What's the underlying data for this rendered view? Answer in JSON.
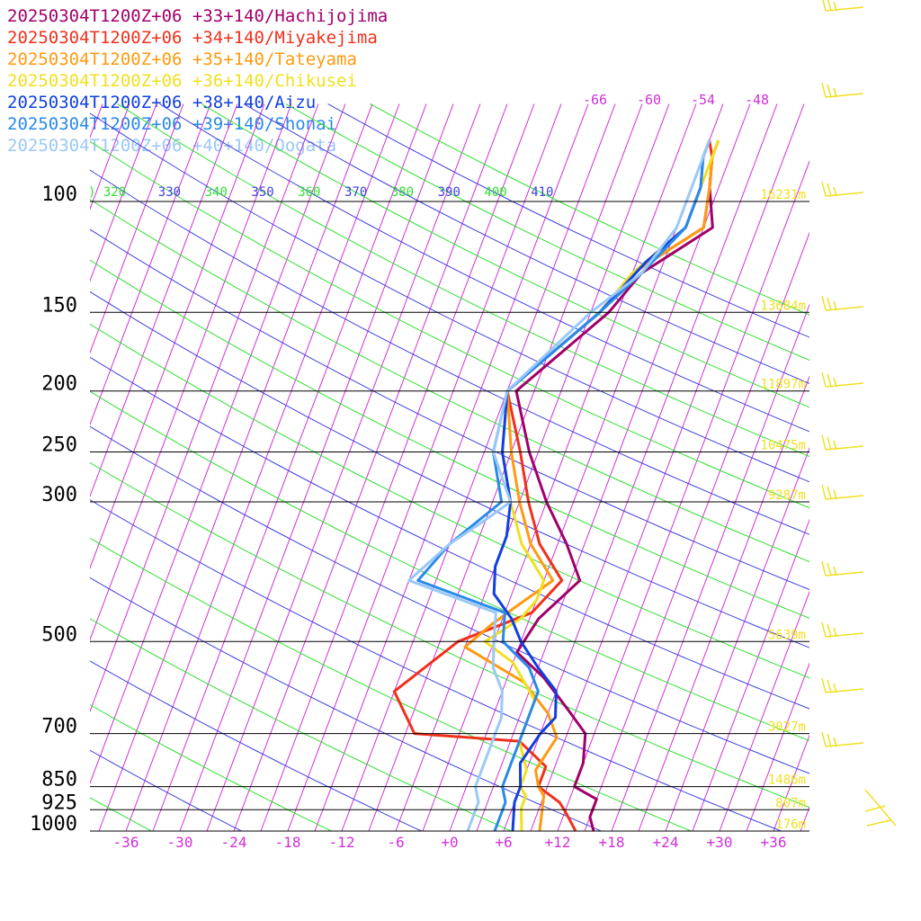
{
  "chart_data": {
    "type": "line",
    "title": "",
    "xlabel": "",
    "ylabel": "",
    "xlim": [
      -40,
      40
    ],
    "ylim_hpa": [
      1000,
      100
    ],
    "pressure_ticks": [
      100,
      150,
      200,
      250,
      300,
      500,
      700,
      850,
      925,
      1000
    ],
    "temperature_ticks": [
      "-36",
      "-30",
      "-24",
      "-18",
      "-12",
      "-6",
      "+0",
      "+6",
      "+12",
      "+18",
      "+24",
      "+30",
      "+36"
    ],
    "temperature_tick_values": [
      -36,
      -30,
      -24,
      -18,
      -12,
      -6,
      0,
      6,
      12,
      18,
      24,
      30,
      36
    ],
    "theta_labels": [
      ") 320",
      "330",
      "340",
      "350",
      "360",
      "370",
      "380",
      "390",
      "400",
      "410"
    ],
    "upper_temp_labels": [
      "-66",
      "-60",
      "-54",
      "-48"
    ],
    "height_labels": [
      {
        "p": 100,
        "text": "16231m"
      },
      {
        "p": 150,
        "text": "13684m"
      },
      {
        "p": 200,
        "text": "11897m"
      },
      {
        "p": 250,
        "text": "10475m"
      },
      {
        "p": 300,
        "text": "9287m"
      },
      {
        "p": 500,
        "text": "5639m"
      },
      {
        "p": 700,
        "text": "3027m"
      },
      {
        "p": 850,
        "text": "1486m"
      },
      {
        "p": 925,
        "text": "807m"
      },
      {
        "p": 1000,
        "text": "176m"
      }
    ],
    "series": [
      {
        "name": "20250304T1200Z+06 +33+140/Hachijojima",
        "color": "#a0006a",
        "points": [
          [
            1,
            80
          ],
          [
            1,
            85
          ],
          [
            2,
            95
          ],
          [
            4,
            110
          ],
          [
            -2,
            130
          ],
          [
            -4,
            150
          ],
          [
            -11,
            200
          ],
          [
            -7,
            250
          ],
          [
            -3,
            300
          ],
          [
            1,
            350
          ],
          [
            4,
            400
          ],
          [
            1,
            460
          ],
          [
            0,
            520
          ],
          [
            4,
            570
          ],
          [
            8,
            640
          ],
          [
            11,
            700
          ],
          [
            12,
            780
          ],
          [
            12,
            850
          ],
          [
            15,
            890
          ],
          [
            15,
            950
          ],
          [
            16,
            1000
          ]
        ]
      },
      {
        "name": "20250304T1200Z+06 +34+140/Miyakejima",
        "color": "#f0301c",
        "points": [
          [
            0,
            80
          ],
          [
            1,
            85
          ],
          [
            2,
            95
          ],
          [
            3,
            110
          ],
          [
            -3,
            130
          ],
          [
            -5,
            150
          ],
          [
            -12,
            200
          ],
          [
            -8,
            250
          ],
          [
            -5,
            300
          ],
          [
            -2,
            350
          ],
          [
            2,
            400
          ],
          [
            0,
            450
          ],
          [
            -7,
            500
          ],
          [
            -12,
            600
          ],
          [
            -8,
            700
          ],
          [
            4,
            720
          ],
          [
            8,
            790
          ],
          [
            8,
            850
          ],
          [
            11,
            900
          ],
          [
            12,
            930
          ],
          [
            14,
            1000
          ]
        ]
      },
      {
        "name": "20250304T1200Z+06 +35+140/Tateyama",
        "color": "#ff9a10",
        "points": [
          [
            1,
            80
          ],
          [
            1,
            85
          ],
          [
            2,
            95
          ],
          [
            3,
            110
          ],
          [
            -3,
            130
          ],
          [
            -5,
            150
          ],
          [
            -12,
            200
          ],
          [
            -9,
            250
          ],
          [
            -6,
            300
          ],
          [
            -3,
            350
          ],
          [
            1,
            400
          ],
          [
            -2,
            440
          ],
          [
            -4,
            470
          ],
          [
            -6,
            510
          ],
          [
            2,
            580
          ],
          [
            6,
            650
          ],
          [
            8,
            710
          ],
          [
            7,
            800
          ],
          [
            8,
            850
          ],
          [
            9,
            880
          ],
          [
            10,
            1000
          ]
        ]
      },
      {
        "name": "20250304T1200Z+06 +36+140/Chikusei",
        "color": "#f0e020",
        "points": [
          [
            1,
            80
          ],
          [
            1,
            85
          ],
          [
            1,
            95
          ],
          [
            1,
            110
          ],
          [
            -3,
            130
          ],
          [
            -5,
            150
          ],
          [
            -12,
            200
          ],
          [
            -10,
            250
          ],
          [
            -7,
            300
          ],
          [
            -4,
            350
          ],
          [
            0,
            400
          ],
          [
            0,
            430
          ],
          [
            -1,
            460
          ],
          [
            -4,
            500
          ],
          [
            0,
            540
          ],
          [
            4,
            620
          ],
          [
            4,
            720
          ],
          [
            6,
            800
          ],
          [
            6,
            850
          ],
          [
            7,
            880
          ],
          [
            7,
            920
          ],
          [
            8,
            1000
          ]
        ]
      },
      {
        "name": "20250304T1200Z+06 +38+140/Aizu",
        "color": "#1040e0",
        "points": [
          [
            0,
            80
          ],
          [
            0,
            85
          ],
          [
            1,
            95
          ],
          [
            1,
            110
          ],
          [
            -2,
            125
          ],
          [
            -5,
            150
          ],
          [
            -12,
            200
          ],
          [
            -10,
            250
          ],
          [
            -7,
            300
          ],
          [
            -6,
            340
          ],
          [
            -6,
            380
          ],
          [
            -5,
            420
          ],
          [
            -2,
            460
          ],
          [
            0,
            500
          ],
          [
            3,
            550
          ],
          [
            6,
            600
          ],
          [
            7,
            660
          ],
          [
            6,
            700
          ],
          [
            5,
            780
          ],
          [
            6,
            850
          ],
          [
            6,
            900
          ],
          [
            7,
            1000
          ]
        ]
      },
      {
        "name": "20250304T1200Z+06 +39+140/Shonai",
        "color": "#2a8ae8",
        "points": [
          [
            0,
            80
          ],
          [
            0,
            85
          ],
          [
            1,
            95
          ],
          [
            1,
            110
          ],
          [
            -2,
            130
          ],
          [
            -5,
            150
          ],
          [
            -12,
            200
          ],
          [
            -11,
            250
          ],
          [
            -8,
            300
          ],
          [
            -12,
            350
          ],
          [
            -14,
            400
          ],
          [
            -3,
            450
          ],
          [
            -2,
            500
          ],
          [
            2,
            550
          ],
          [
            4,
            600
          ],
          [
            4,
            660
          ],
          [
            4,
            700
          ],
          [
            4,
            790
          ],
          [
            4,
            850
          ],
          [
            5,
            900
          ],
          [
            5,
            1000
          ]
        ]
      },
      {
        "name": "20250304T1200Z+06 +40+140/Oogata",
        "color": "#9ac8f8",
        "points": [
          [
            0,
            80
          ],
          [
            0,
            85
          ],
          [
            0,
            95
          ],
          [
            0,
            110
          ],
          [
            -2,
            130
          ],
          [
            -6,
            150
          ],
          [
            -12,
            200
          ],
          [
            -11,
            250
          ],
          [
            -7,
            300
          ],
          [
            -9,
            320
          ],
          [
            -12,
            350
          ],
          [
            -15,
            400
          ],
          [
            -4,
            450
          ],
          [
            -3,
            500
          ],
          [
            -2,
            550
          ],
          [
            0,
            600
          ],
          [
            1,
            660
          ],
          [
            1,
            720
          ],
          [
            1,
            850
          ],
          [
            2,
            900
          ],
          [
            2,
            1000
          ]
        ]
      }
    ]
  }
}
